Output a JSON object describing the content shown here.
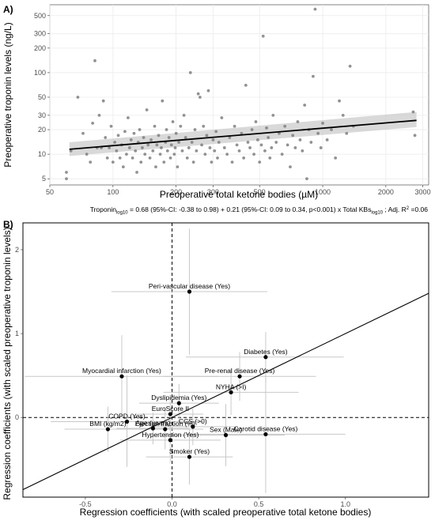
{
  "colors": {
    "panel_bg": "#ffffff",
    "grid": "#ebebeb",
    "points_a": "#7f7f7f",
    "band": "#cccccc",
    "line": "#000000",
    "ci_lines": "#c8c8c8"
  },
  "chart_data": [
    {
      "panel_label": "A)",
      "type": "scatter",
      "xlabel": "Preoperative total ketone bodies (µM)",
      "ylabel": "Preoperative troponin levels (ng/L)",
      "x_scale": "log10",
      "y_scale": "log10",
      "xlim": [
        50,
        3200
      ],
      "ylim": [
        4.2,
        680
      ],
      "x_ticks": [
        {
          "v": 50,
          "label": "50"
        },
        {
          "v": 100,
          "label": "100"
        },
        {
          "v": 200,
          "label": "200"
        },
        {
          "v": 300,
          "label": "300"
        },
        {
          "v": 500,
          "label": "500"
        },
        {
          "v": 1000,
          "label": "1000"
        },
        {
          "v": 2000,
          "label": "2000"
        },
        {
          "v": 3000,
          "label": "3000"
        }
      ],
      "y_ticks": [
        {
          "v": 5,
          "label": "5"
        },
        {
          "v": 10,
          "label": "10"
        },
        {
          "v": 20,
          "label": "20"
        },
        {
          "v": 30,
          "label": "30"
        },
        {
          "v": 50,
          "label": "50"
        },
        {
          "v": 100,
          "label": "100"
        },
        {
          "v": 200,
          "label": "200"
        },
        {
          "v": 300,
          "label": "300"
        },
        {
          "v": 500,
          "label": "500"
        }
      ],
      "grid": true,
      "fit": {
        "x_range": [
          62,
          2800
        ],
        "y_at_ends": [
          11.5,
          26
        ],
        "band_lower_at_ends": [
          9.5,
          21.5
        ],
        "band_upper_at_ends": [
          14,
          33
        ]
      },
      "points": [
        [
          60,
          5
        ],
        [
          60,
          6
        ],
        [
          63,
          11
        ],
        [
          68,
          50
        ],
        [
          72,
          18
        ],
        [
          75,
          10
        ],
        [
          78,
          8
        ],
        [
          80,
          24
        ],
        [
          82,
          140
        ],
        [
          84,
          12
        ],
        [
          86,
          30
        ],
        [
          88,
          12
        ],
        [
          90,
          45
        ],
        [
          92,
          16
        ],
        [
          94,
          9
        ],
        [
          96,
          12
        ],
        [
          98,
          22
        ],
        [
          100,
          8
        ],
        [
          102,
          14
        ],
        [
          104,
          11
        ],
        [
          106,
          17
        ],
        [
          108,
          9
        ],
        [
          110,
          13
        ],
        [
          112,
          7
        ],
        [
          114,
          19
        ],
        [
          116,
          10
        ],
        [
          118,
          28
        ],
        [
          120,
          12
        ],
        [
          122,
          15
        ],
        [
          124,
          9
        ],
        [
          126,
          18
        ],
        [
          128,
          11
        ],
        [
          130,
          6
        ],
        [
          132,
          14
        ],
        [
          134,
          20
        ],
        [
          136,
          8
        ],
        [
          138,
          12
        ],
        [
          140,
          16
        ],
        [
          142,
          10
        ],
        [
          145,
          35
        ],
        [
          147,
          13
        ],
        [
          150,
          9
        ],
        [
          152,
          15
        ],
        [
          155,
          11
        ],
        [
          158,
          22
        ],
        [
          160,
          7
        ],
        [
          162,
          13
        ],
        [
          165,
          17
        ],
        [
          168,
          10
        ],
        [
          170,
          12
        ],
        [
          172,
          45
        ],
        [
          175,
          8
        ],
        [
          178,
          14
        ],
        [
          180,
          20
        ],
        [
          182,
          11
        ],
        [
          185,
          16
        ],
        [
          188,
          9
        ],
        [
          190,
          13
        ],
        [
          193,
          25
        ],
        [
          196,
          10
        ],
        [
          198,
          12
        ],
        [
          200,
          18
        ],
        [
          203,
          7
        ],
        [
          206,
          14
        ],
        [
          210,
          22
        ],
        [
          214,
          11
        ],
        [
          218,
          30
        ],
        [
          222,
          16
        ],
        [
          226,
          9
        ],
        [
          230,
          12
        ],
        [
          234,
          100
        ],
        [
          238,
          14
        ],
        [
          242,
          8
        ],
        [
          246,
          20
        ],
        [
          250,
          11
        ],
        [
          255,
          55
        ],
        [
          260,
          50
        ],
        [
          265,
          13
        ],
        [
          270,
          22
        ],
        [
          275,
          10
        ],
        [
          280,
          17
        ],
        [
          285,
          60
        ],
        [
          290,
          12
        ],
        [
          295,
          8
        ],
        [
          300,
          15
        ],
        [
          305,
          11
        ],
        [
          310,
          19
        ],
        [
          315,
          9
        ],
        [
          320,
          14
        ],
        [
          330,
          28
        ],
        [
          340,
          12
        ],
        [
          350,
          10
        ],
        [
          360,
          16
        ],
        [
          370,
          8
        ],
        [
          380,
          22
        ],
        [
          390,
          13
        ],
        [
          400,
          11
        ],
        [
          410,
          18
        ],
        [
          420,
          9
        ],
        [
          430,
          70
        ],
        [
          440,
          14
        ],
        [
          450,
          12
        ],
        [
          460,
          20
        ],
        [
          470,
          10
        ],
        [
          480,
          25
        ],
        [
          490,
          15
        ],
        [
          500,
          8
        ],
        [
          510,
          13
        ],
        [
          520,
          280
        ],
        [
          530,
          11
        ],
        [
          540,
          21
        ],
        [
          550,
          16
        ],
        [
          560,
          9
        ],
        [
          570,
          12
        ],
        [
          580,
          30
        ],
        [
          600,
          14
        ],
        [
          620,
          18
        ],
        [
          640,
          10
        ],
        [
          660,
          22
        ],
        [
          680,
          13
        ],
        [
          700,
          7
        ],
        [
          720,
          17
        ],
        [
          740,
          12
        ],
        [
          760,
          25
        ],
        [
          780,
          15
        ],
        [
          800,
          11
        ],
        [
          820,
          40
        ],
        [
          840,
          5
        ],
        [
          860,
          20
        ],
        [
          880,
          14
        ],
        [
          900,
          90
        ],
        [
          920,
          600
        ],
        [
          950,
          18
        ],
        [
          980,
          12
        ],
        [
          1000,
          24
        ],
        [
          1050,
          15
        ],
        [
          1100,
          20
        ],
        [
          1150,
          9
        ],
        [
          1200,
          45
        ],
        [
          1250,
          30
        ],
        [
          1300,
          18
        ],
        [
          1350,
          120
        ],
        [
          1400,
          22
        ],
        [
          2700,
          33
        ],
        [
          2750,
          17
        ]
      ]
    },
    {
      "panel_label": "B)",
      "type": "scatter",
      "xlabel": "Regression coefficients (with scaled preoperative total ketone bodies)",
      "ylabel": "Regression coefficients (with scaled preoperative troponin levels)",
      "xlim": [
        -0.86,
        1.48
      ],
      "ylim": [
        -0.95,
        2.32
      ],
      "x_ticks": [
        {
          "v": -0.5,
          "label": "-0.5"
        },
        {
          "v": 0,
          "label": "0.0"
        },
        {
          "v": 0.5,
          "label": "0.5"
        },
        {
          "v": 1,
          "label": "1.0"
        }
      ],
      "y_ticks": [
        {
          "v": 0,
          "label": "0"
        },
        {
          "v": 1,
          "label": "1"
        },
        {
          "v": 2,
          "label": "2"
        }
      ],
      "grid": false,
      "reference_lines": {
        "x": 0,
        "y": 0
      },
      "identity_line": true,
      "points": [
        {
          "name": "Peri-vascular disease (Yes)",
          "x": 0.1,
          "y": 1.5,
          "xlo": -0.35,
          "xhi": 0.55,
          "ylo": 0.75,
          "yhi": 2.25
        },
        {
          "name": "Diabetes (Yes)",
          "x": 0.54,
          "y": 0.72,
          "xlo": 0.08,
          "xhi": 0.99,
          "ylo": 0.42,
          "yhi": 1.02
        },
        {
          "name": "Myocardial infarction (Yes)",
          "x": -0.29,
          "y": 0.49,
          "xlo": -0.85,
          "xhi": 0.27,
          "ylo": 0.0,
          "yhi": 0.98
        },
        {
          "name": "Pre-renal disease (Yes)",
          "x": 0.39,
          "y": 0.49,
          "xlo": -0.05,
          "xhi": 0.83,
          "ylo": 0.2,
          "yhi": 0.78
        },
        {
          "name": "NYHA (>I)",
          "x": 0.34,
          "y": 0.3,
          "xlo": -0.05,
          "xhi": 0.73,
          "ylo": 0.03,
          "yhi": 0.58
        },
        {
          "name": "Dyslipidemia (Yes)",
          "x": 0.04,
          "y": 0.17,
          "xlo": -0.19,
          "xhi": 0.27,
          "ylo": -0.07,
          "yhi": 0.4
        },
        {
          "name": "COPD (Yes)",
          "x": -0.26,
          "y": -0.05,
          "xlo": -0.7,
          "xhi": 0.18,
          "ylo": -0.59,
          "yhi": 0.5
        },
        {
          "name": "EuroScore II",
          "x": -0.01,
          "y": 0.04,
          "xlo": -0.2,
          "xhi": 0.18,
          "ylo": -0.16,
          "yhi": 0.24
        },
        {
          "name": "CCS (>0)",
          "x": 0.12,
          "y": -0.11,
          "xlo": -0.12,
          "xhi": 0.36,
          "ylo": -0.33,
          "yhi": 0.11
        },
        {
          "name": "Age (years)",
          "x": -0.11,
          "y": -0.13,
          "xlo": -0.32,
          "xhi": 0.1,
          "ylo": -0.32,
          "yhi": 0.06
        },
        {
          "name": "BMI (kg/m2)",
          "x": -0.37,
          "y": -0.14,
          "xlo": -0.62,
          "xhi": -0.12,
          "ylo": -0.41,
          "yhi": 0.13
        },
        {
          "name": "Ejection fraction (%)",
          "x": -0.04,
          "y": -0.14,
          "xlo": -0.26,
          "xhi": 0.18,
          "ylo": -0.38,
          "yhi": 0.1
        },
        {
          "name": "Carotid disease (Yes)",
          "x": 0.54,
          "y": -0.2,
          "xlo": 0.08,
          "xhi": 1.0,
          "ylo": -0.9,
          "yhi": 0.5
        },
        {
          "name": "Sex (Male)",
          "x": 0.31,
          "y": -0.21,
          "xlo": -0.03,
          "xhi": 0.65,
          "ylo": -0.58,
          "yhi": 0.16
        },
        {
          "name": "Hypertension (Yes)",
          "x": -0.01,
          "y": -0.27,
          "xlo": -0.3,
          "xhi": 0.28,
          "ylo": -0.55,
          "yhi": 0.01
        },
        {
          "name": "Smoker (Yes)",
          "x": 0.1,
          "y": -0.47,
          "xlo": -0.15,
          "xhi": 0.35,
          "ylo": -0.8,
          "yhi": -0.14
        }
      ]
    }
  ],
  "formula": {
    "lead": "Troponin",
    "sub1": "log10",
    "mid": " = 0.68 (95%-CI: -0.38 to 0.98) + 0.21 (95%-CI: 0.09 to 0.34, p<0.001) x Total KBs",
    "sub2": "log10",
    "tail": " ; Adj. R",
    "sup": "2",
    "end": " =0.06"
  }
}
